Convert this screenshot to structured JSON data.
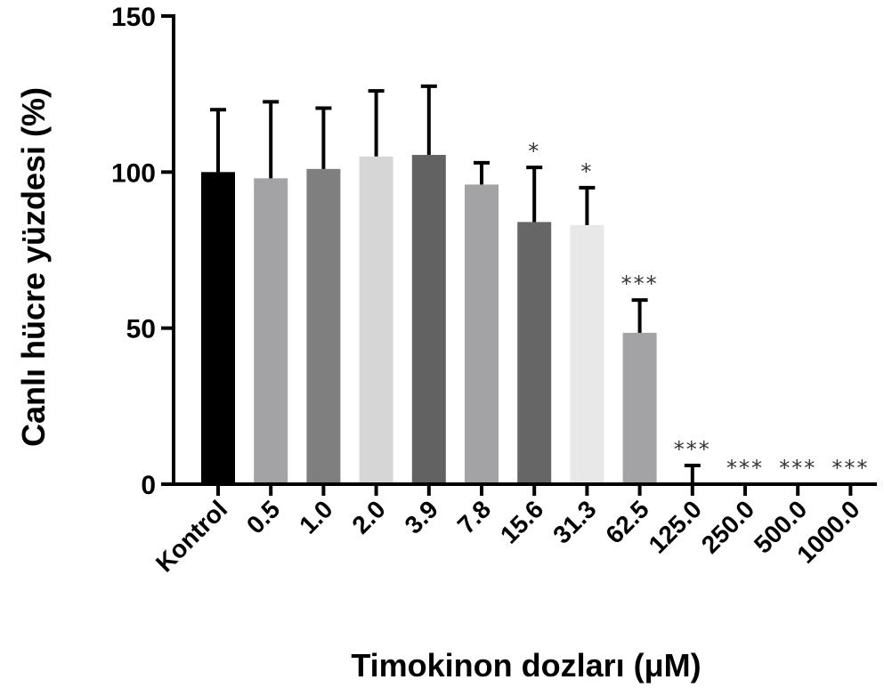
{
  "chart_data": {
    "type": "bar",
    "title": "",
    "xlabel": "Timokinon dozları (μM)",
    "ylabel": "Canlı hücre yüzdesi (%)",
    "ylim": [
      0,
      150
    ],
    "yticks": [
      0,
      50,
      100,
      150
    ],
    "grid": false,
    "legend": "none",
    "categories": [
      "Kontrol",
      "0.5",
      "1.0",
      "2.0",
      "3.9",
      "7.8",
      "15.6",
      "31.3",
      "62.5",
      "125.0",
      "250.0",
      "500.0",
      "1000.0"
    ],
    "values": [
      100,
      98,
      101,
      105,
      105.5,
      96,
      84,
      83,
      48.5,
      0.5,
      0,
      0,
      0
    ],
    "error": [
      20,
      24.5,
      19.5,
      21,
      22,
      7,
      17.5,
      12,
      10.5,
      5.5,
      0,
      0,
      0
    ],
    "significance": [
      "",
      "",
      "",
      "",
      "",
      "",
      "*",
      "*",
      "***",
      "***",
      "***",
      "***",
      "***"
    ],
    "colors": [
      "#000000",
      "#a3a3a6",
      "#7f7f7f",
      "#d6d6d6",
      "#626262",
      "#a3a3a6",
      "#666666",
      "#e8e8e8",
      "#a3a3a6",
      "#7f7f7f",
      "#d6d6d6",
      "#626262",
      "#a3a3a6"
    ]
  }
}
